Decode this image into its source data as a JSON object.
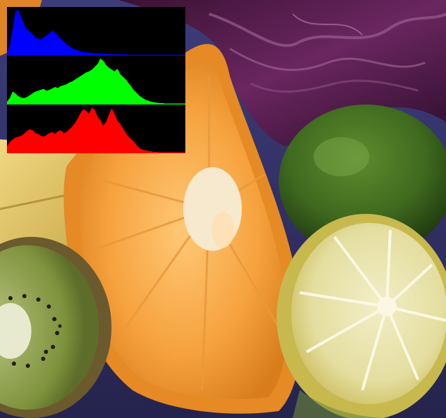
{
  "scene": {
    "subjects": [
      "orange-wedge",
      "lime",
      "lemon-half",
      "kiwi-half",
      "red-cabbage",
      "cheese-block",
      "blue-cloth"
    ]
  },
  "histogram": {
    "channel_order": [
      "blue",
      "green",
      "red"
    ],
    "colors": {
      "blue": "#0000ff",
      "green": "#00ff00",
      "red": "#ff0000",
      "background": "#000000"
    },
    "bins": 64,
    "channels": {
      "blue": [
        8,
        22,
        55,
        92,
        95,
        80,
        65,
        55,
        50,
        45,
        38,
        35,
        34,
        38,
        42,
        46,
        52,
        48,
        42,
        35,
        30,
        24,
        20,
        16,
        13,
        11,
        9,
        8,
        7,
        6,
        6,
        5,
        5,
        4,
        4,
        4,
        4,
        3,
        3,
        3,
        3,
        3,
        3,
        2,
        2,
        2,
        2,
        2,
        2,
        2,
        2,
        2,
        2,
        2,
        2,
        2,
        2,
        2,
        2,
        2,
        2,
        2,
        2,
        2
      ],
      "green": [
        6,
        14,
        28,
        24,
        18,
        15,
        14,
        16,
        20,
        24,
        28,
        30,
        32,
        34,
        30,
        32,
        35,
        38,
        36,
        40,
        42,
        44,
        48,
        50,
        54,
        58,
        62,
        66,
        70,
        72,
        76,
        82,
        88,
        100,
        95,
        86,
        80,
        76,
        72,
        78,
        66,
        60,
        54,
        46,
        38,
        30,
        24,
        18,
        14,
        10,
        8,
        6,
        5,
        4,
        3,
        3,
        2,
        2,
        2,
        2,
        2,
        2,
        2,
        2
      ],
      "red": [
        15,
        24,
        30,
        34,
        36,
        38,
        42,
        48,
        52,
        50,
        44,
        42,
        38,
        36,
        40,
        44,
        46,
        42,
        48,
        50,
        44,
        46,
        52,
        58,
        66,
        76,
        88,
        96,
        92,
        86,
        100,
        94,
        80,
        72,
        60,
        68,
        84,
        98,
        86,
        70,
        64,
        54,
        44,
        36,
        30,
        24,
        16,
        10,
        8,
        6,
        5,
        4,
        3,
        3,
        2,
        2,
        2,
        2,
        2,
        2,
        2,
        2,
        2,
        2
      ]
    }
  }
}
